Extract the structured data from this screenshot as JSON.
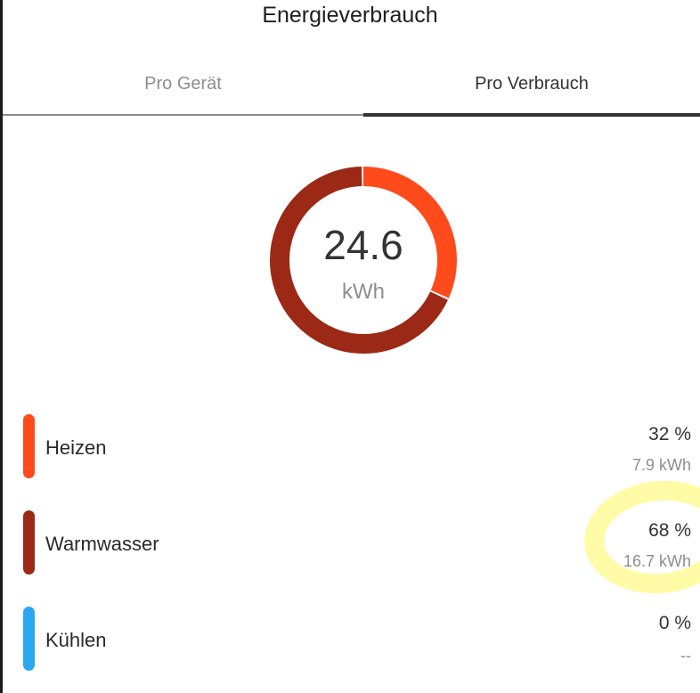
{
  "header": {
    "title": "Energieverbrauch"
  },
  "tabs": [
    {
      "label": "Pro Gerät",
      "active": false
    },
    {
      "label": "Pro Verbrauch",
      "active": true
    }
  ],
  "summary": {
    "value": "24.6",
    "unit": "kWh"
  },
  "colors": {
    "heizen": "#FF4A1C",
    "warmwasser": "#9B2915",
    "kuehlen": "#2AA8F2",
    "highlight": "#FFFA96"
  },
  "categories": [
    {
      "label": "Heizen",
      "percent": "32 %",
      "energy": "7.9 kWh",
      "share": 0.32,
      "color_key": "heizen"
    },
    {
      "label": "Warmwasser",
      "percent": "68 %",
      "energy": "16.7 kWh",
      "share": 0.68,
      "color_key": "warmwasser"
    },
    {
      "label": "Kühlen",
      "percent": "0 %",
      "energy": "--",
      "share": 0,
      "color_key": "kuehlen"
    }
  ]
}
